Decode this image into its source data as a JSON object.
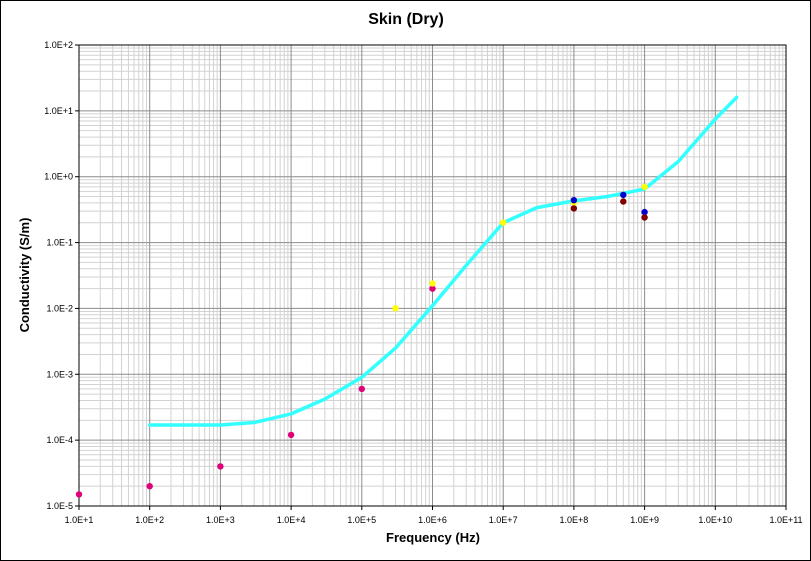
{
  "chart_data": {
    "type": "scatter",
    "title": "Skin (Dry)",
    "xlabel": "Frequency (Hz)",
    "ylabel": "Conductivity (S/m)",
    "x_scale": "log",
    "y_scale": "log",
    "xlim": [
      10,
      100000000000
    ],
    "ylim": [
      1e-05,
      100
    ],
    "grid": true,
    "x_ticks": [
      {
        "value": 10,
        "label": "1.0E+1"
      },
      {
        "value": 100,
        "label": "1.0E+2"
      },
      {
        "value": 1000,
        "label": "1.0E+3"
      },
      {
        "value": 10000,
        "label": "1.0E+4"
      },
      {
        "value": 100000,
        "label": "1.0E+5"
      },
      {
        "value": 1000000,
        "label": "1.0E+6"
      },
      {
        "value": 10000000,
        "label": "1.0E+7"
      },
      {
        "value": 100000000,
        "label": "1.0E+8"
      },
      {
        "value": 1000000000,
        "label": "1.0E+9"
      },
      {
        "value": 10000000000,
        "label": "1.0E+10"
      },
      {
        "value": 100000000000,
        "label": "1.0E+11"
      }
    ],
    "y_ticks": [
      {
        "value": 1e-05,
        "label": "1.0E-5"
      },
      {
        "value": 0.0001,
        "label": "1.0E-4"
      },
      {
        "value": 0.001,
        "label": "1.0E-3"
      },
      {
        "value": 0.01,
        "label": "1.0E-2"
      },
      {
        "value": 0.1,
        "label": "1.0E-1"
      },
      {
        "value": 1,
        "label": "1.0E+0"
      },
      {
        "value": 10,
        "label": "1.0E+1"
      },
      {
        "value": 100,
        "label": "1.0E+2"
      }
    ],
    "series": [
      {
        "kind": "line",
        "color": "#33ffff",
        "x": [
          100,
          300,
          1000,
          3000,
          10000,
          30000,
          100000,
          300000,
          1000000,
          3000000,
          10000000,
          30000000,
          100000000,
          300000000,
          1000000000,
          3000000000,
          10000000000,
          20000000000
        ],
        "y": [
          0.00017,
          0.00017,
          0.00017,
          0.000185,
          0.00025,
          0.00042,
          0.0009,
          0.0025,
          0.011,
          0.045,
          0.2,
          0.34,
          0.43,
          0.5,
          0.65,
          1.7,
          7.5,
          16
        ]
      },
      {
        "kind": "points",
        "color": "#e0007a",
        "x": [
          10,
          100,
          1000,
          10000,
          100000,
          1000000
        ],
        "y": [
          1.5e-05,
          2e-05,
          4e-05,
          0.00012,
          0.0006,
          0.02
        ]
      },
      {
        "kind": "points",
        "color": "#ffff00",
        "x": [
          300000,
          1000000,
          10000000,
          100000000,
          1000000000
        ],
        "y": [
          0.01,
          0.024,
          0.2,
          0.4,
          0.7
        ]
      },
      {
        "kind": "points",
        "color": "#0000cc",
        "x": [
          100000000,
          500000000,
          1000000000
        ],
        "y": [
          0.44,
          0.53,
          0.29
        ]
      },
      {
        "kind": "points",
        "color": "#800000",
        "x": [
          100000000,
          500000000,
          1000000000
        ],
        "y": [
          0.33,
          0.42,
          0.24
        ]
      }
    ]
  }
}
